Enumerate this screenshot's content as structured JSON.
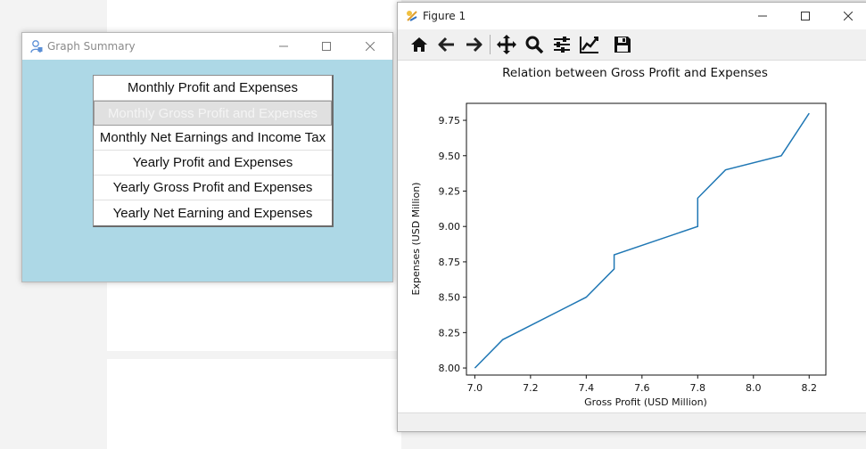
{
  "graph_summary": {
    "title": "Graph Summary",
    "buttons": [
      "Monthly Profit and Expenses",
      "Monthly Gross Profit and Expenses",
      "Monthly Net Earnings and Income Tax",
      "Yearly Profit and Expenses",
      "Yearly Gross Profit and Expenses",
      "Yearly Net Earning and Expenses"
    ],
    "selected_index": 1,
    "background_color": "#add8e6"
  },
  "figure": {
    "title": "Figure 1",
    "toolbar": [
      "home-icon",
      "back-arrow-icon",
      "forward-arrow-icon",
      "pan-icon",
      "zoom-icon",
      "subplots-icon",
      "edit-axis-icon",
      "save-icon"
    ]
  },
  "chart_data": {
    "type": "line",
    "title": "Relation between Gross Profit and Expenses",
    "xlabel": "Gross Profit (USD Million)",
    "ylabel": "Expenses (USD Million)",
    "xlim": [
      6.97,
      8.26
    ],
    "ylim": [
      7.95,
      9.87
    ],
    "xticks": [
      "7.0",
      "7.2",
      "7.4",
      "7.6",
      "7.8",
      "8.0",
      "8.2"
    ],
    "yticks": [
      "8.00",
      "8.25",
      "8.50",
      "8.75",
      "9.00",
      "9.25",
      "9.50",
      "9.75"
    ],
    "x": [
      7.0,
      7.1,
      7.4,
      7.5,
      7.5,
      7.8,
      7.8,
      7.9,
      8.1,
      8.2
    ],
    "y": [
      8.0,
      8.2,
      8.5,
      8.7,
      8.8,
      9.0,
      9.2,
      9.4,
      9.5,
      9.8
    ],
    "line_color": "#1f77b4",
    "grid": false
  }
}
